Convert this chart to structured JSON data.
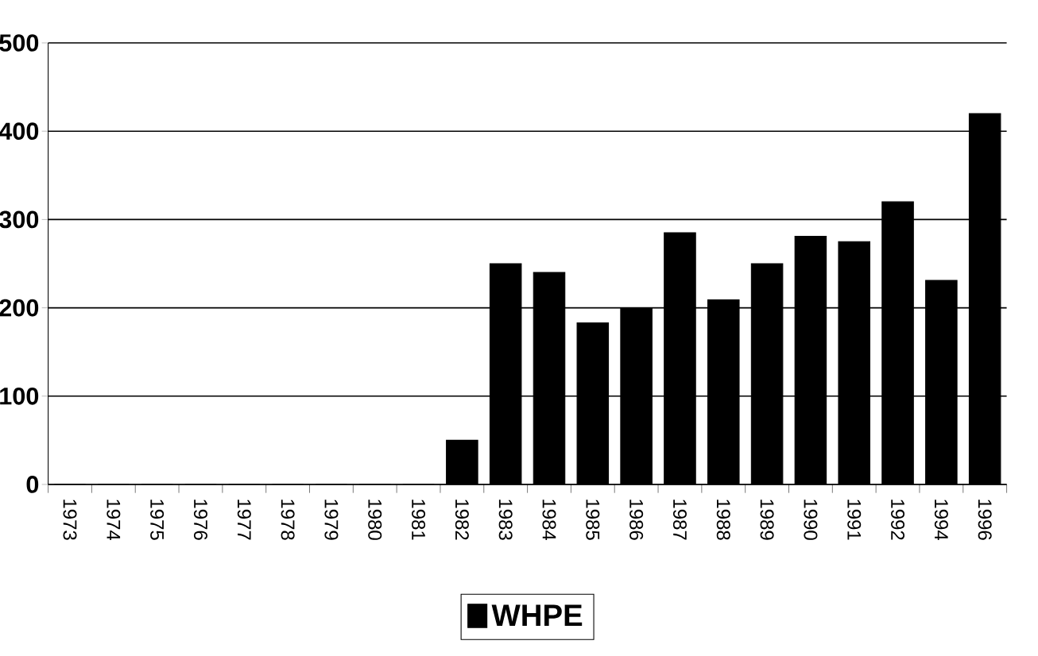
{
  "chart_data": {
    "type": "bar",
    "categories": [
      "1973",
      "1974",
      "1975",
      "1976",
      "1977",
      "1978",
      "1979",
      "1980",
      "1981",
      "1982",
      "1983",
      "1984",
      "1985",
      "1986",
      "1987",
      "1988",
      "1989",
      "1990",
      "1991",
      "1992",
      "1994",
      "1996"
    ],
    "series": [
      {
        "name": "WHPE",
        "color": "#000000",
        "values": [
          0,
          0,
          0,
          0,
          0,
          0,
          0,
          0,
          0,
          50,
          250,
          240,
          183,
          200,
          285,
          209,
          250,
          281,
          275,
          320,
          231,
          420
        ]
      }
    ],
    "ylim": [
      0,
      500
    ],
    "yticks": [
      0,
      100,
      200,
      300,
      400,
      500
    ],
    "grid": "y",
    "legend": "bottom"
  }
}
